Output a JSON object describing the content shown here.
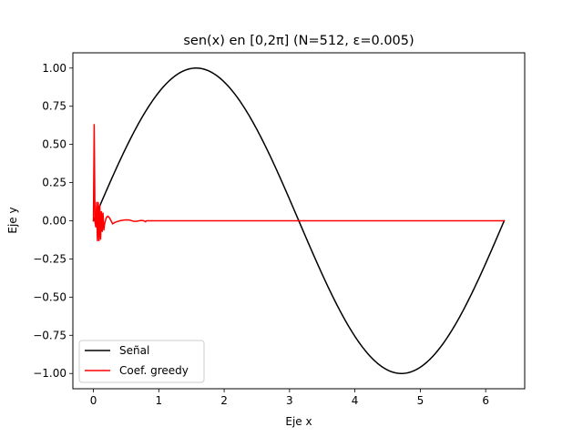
{
  "chart_data": {
    "type": "line",
    "title": "sen(x) en [0,2π] (N=512, ε=0.005)",
    "xlabel": "Eje x",
    "ylabel": "Eje y",
    "xlim": [
      -0.314,
      6.597
    ],
    "ylim": [
      -1.1,
      1.1
    ],
    "xticks": [
      0,
      1,
      2,
      3,
      4,
      5,
      6
    ],
    "xtick_labels": [
      "0",
      "1",
      "2",
      "3",
      "4",
      "5",
      "6"
    ],
    "yticks": [
      -1.0,
      -0.75,
      -0.5,
      -0.25,
      0.0,
      0.25,
      0.5,
      0.75,
      1.0
    ],
    "ytick_labels": [
      "−1.00",
      "−0.75",
      "−0.50",
      "−0.25",
      "0.00",
      "0.25",
      "0.50",
      "0.75",
      "1.00"
    ],
    "grid": false,
    "legend_position": "lower-left",
    "series": [
      {
        "name": "Señal",
        "color": "#000000",
        "function": "sin",
        "x_range": [
          0,
          6.2832
        ],
        "samples": 512
      },
      {
        "name": "Coef. greedy",
        "color": "#ff0000",
        "x": [
          0.0,
          0.0123,
          0.0245,
          0.0368,
          0.049,
          0.0613,
          0.0736,
          0.0858,
          0.098,
          0.11,
          0.123,
          0.135,
          0.147,
          0.16,
          0.172,
          0.184,
          0.196,
          0.221,
          0.245,
          0.27,
          0.294,
          0.331,
          0.368,
          0.405,
          0.441,
          0.478,
          0.515,
          0.552,
          0.589,
          0.625,
          0.662,
          0.699,
          0.736,
          0.773,
          0.797,
          0.81,
          1.5,
          2.5,
          3.5,
          4.5,
          5.5,
          6.28
        ],
        "y": [
          0.0,
          0.63,
          -0.01,
          -0.04,
          0.12,
          -0.13,
          0.12,
          -0.13,
          0.1,
          -0.12,
          0.06,
          -0.07,
          0.05,
          -0.06,
          -0.02,
          0.0,
          0.02,
          0.03,
          0.02,
          0.0,
          -0.02,
          -0.01,
          -0.005,
          0.0,
          0.003,
          0.005,
          0.006,
          0.005,
          0.0,
          -0.004,
          -0.003,
          0.0,
          0.002,
          0.0,
          -0.007,
          0.0,
          0.0,
          0.0,
          0.0,
          0.0,
          0.0,
          0.0
        ]
      }
    ]
  }
}
